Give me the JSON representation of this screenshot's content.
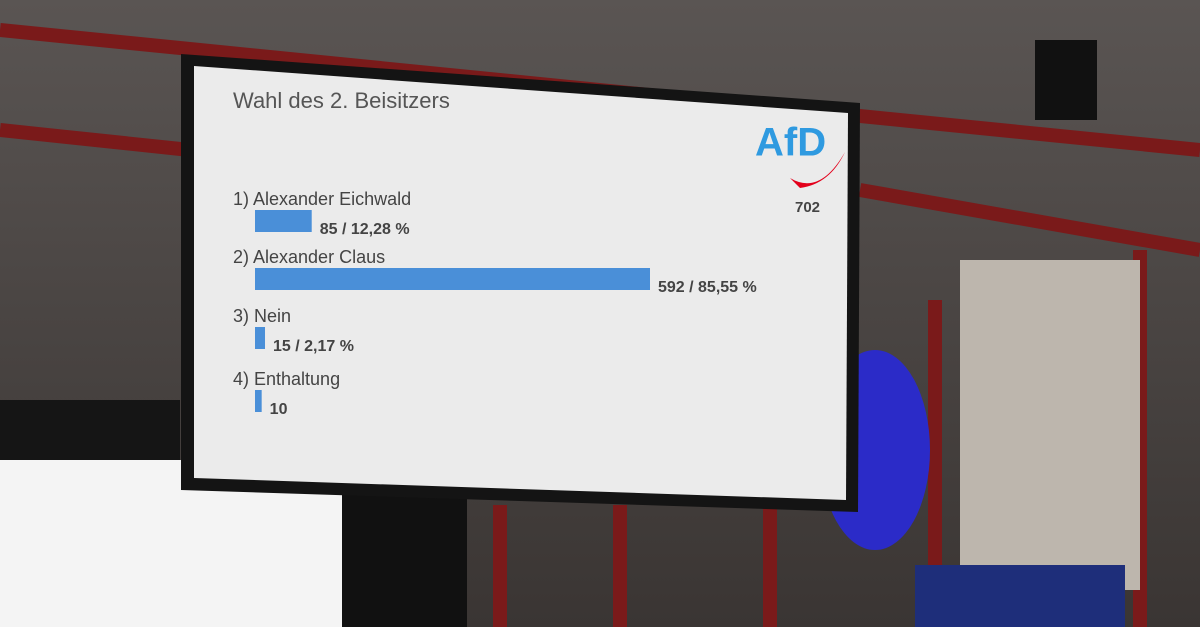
{
  "chart_data": {
    "type": "bar",
    "orientation": "horizontal",
    "title": "Wahl des 2. Beisitzers",
    "categories": [
      "1) Alexander Eichwald",
      "2) Alexander Claus",
      "3) Nein",
      "4) Enthaltung"
    ],
    "values": [
      85,
      592,
      15,
      10
    ],
    "value_labels": [
      "85 / 12,28 %",
      "592 / 85,55 %",
      "15 / 2,17 %",
      "10"
    ],
    "color": "#4a8fd8",
    "logo": "AfD",
    "badge": "702"
  }
}
